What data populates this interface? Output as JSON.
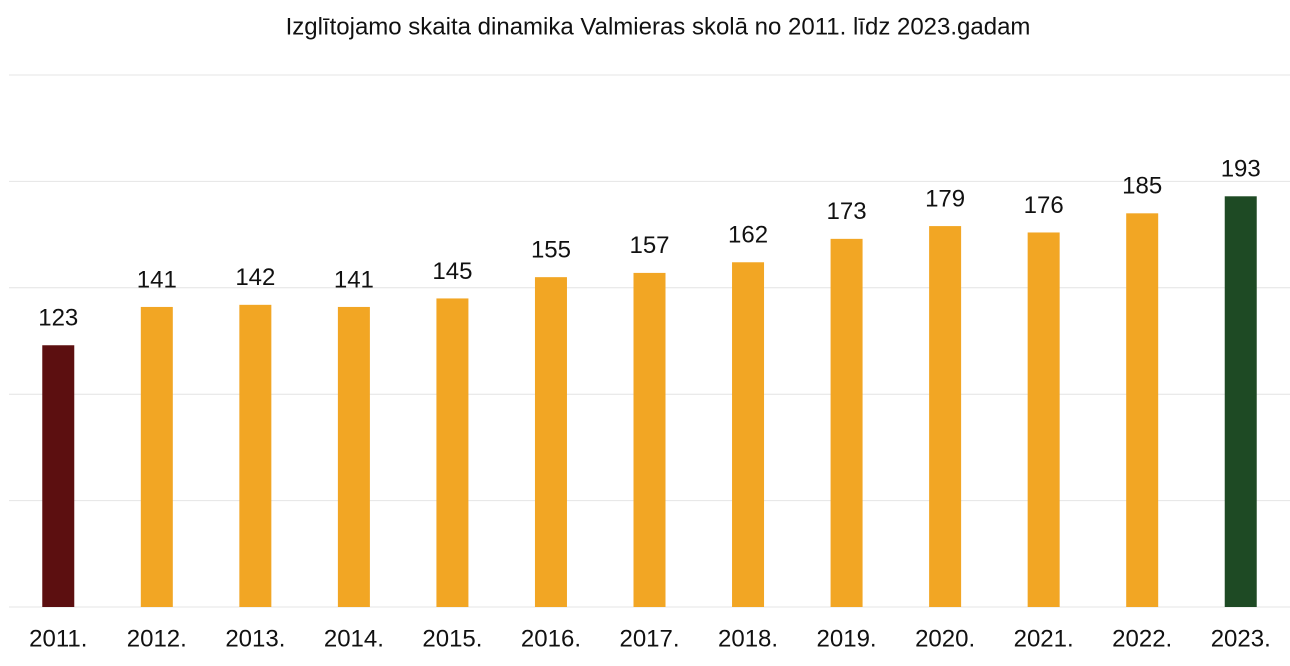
{
  "chart_data": {
    "type": "bar",
    "title": "Izglītojamo skaita dinamika Valmieras skolā no 2011. līdz 2023.gadam",
    "categories": [
      "2011.",
      "2012.",
      "2013.",
      "2014.",
      "2015.",
      "2016.",
      "2017.",
      "2018.",
      "2019.",
      "2020.",
      "2021.",
      "2022.",
      "2023."
    ],
    "values": [
      123,
      141,
      142,
      141,
      145,
      155,
      157,
      162,
      173,
      179,
      176,
      185,
      193
    ],
    "colors": [
      "#5c0f10",
      "#f2a624",
      "#f2a624",
      "#f2a624",
      "#f2a624",
      "#f2a624",
      "#f2a624",
      "#f2a624",
      "#f2a624",
      "#f2a624",
      "#f2a624",
      "#f2a624",
      "#1e4a24"
    ],
    "ylim": [
      0,
      250
    ],
    "yticks": [
      0,
      50,
      100,
      150,
      200,
      250
    ],
    "grid": true
  }
}
